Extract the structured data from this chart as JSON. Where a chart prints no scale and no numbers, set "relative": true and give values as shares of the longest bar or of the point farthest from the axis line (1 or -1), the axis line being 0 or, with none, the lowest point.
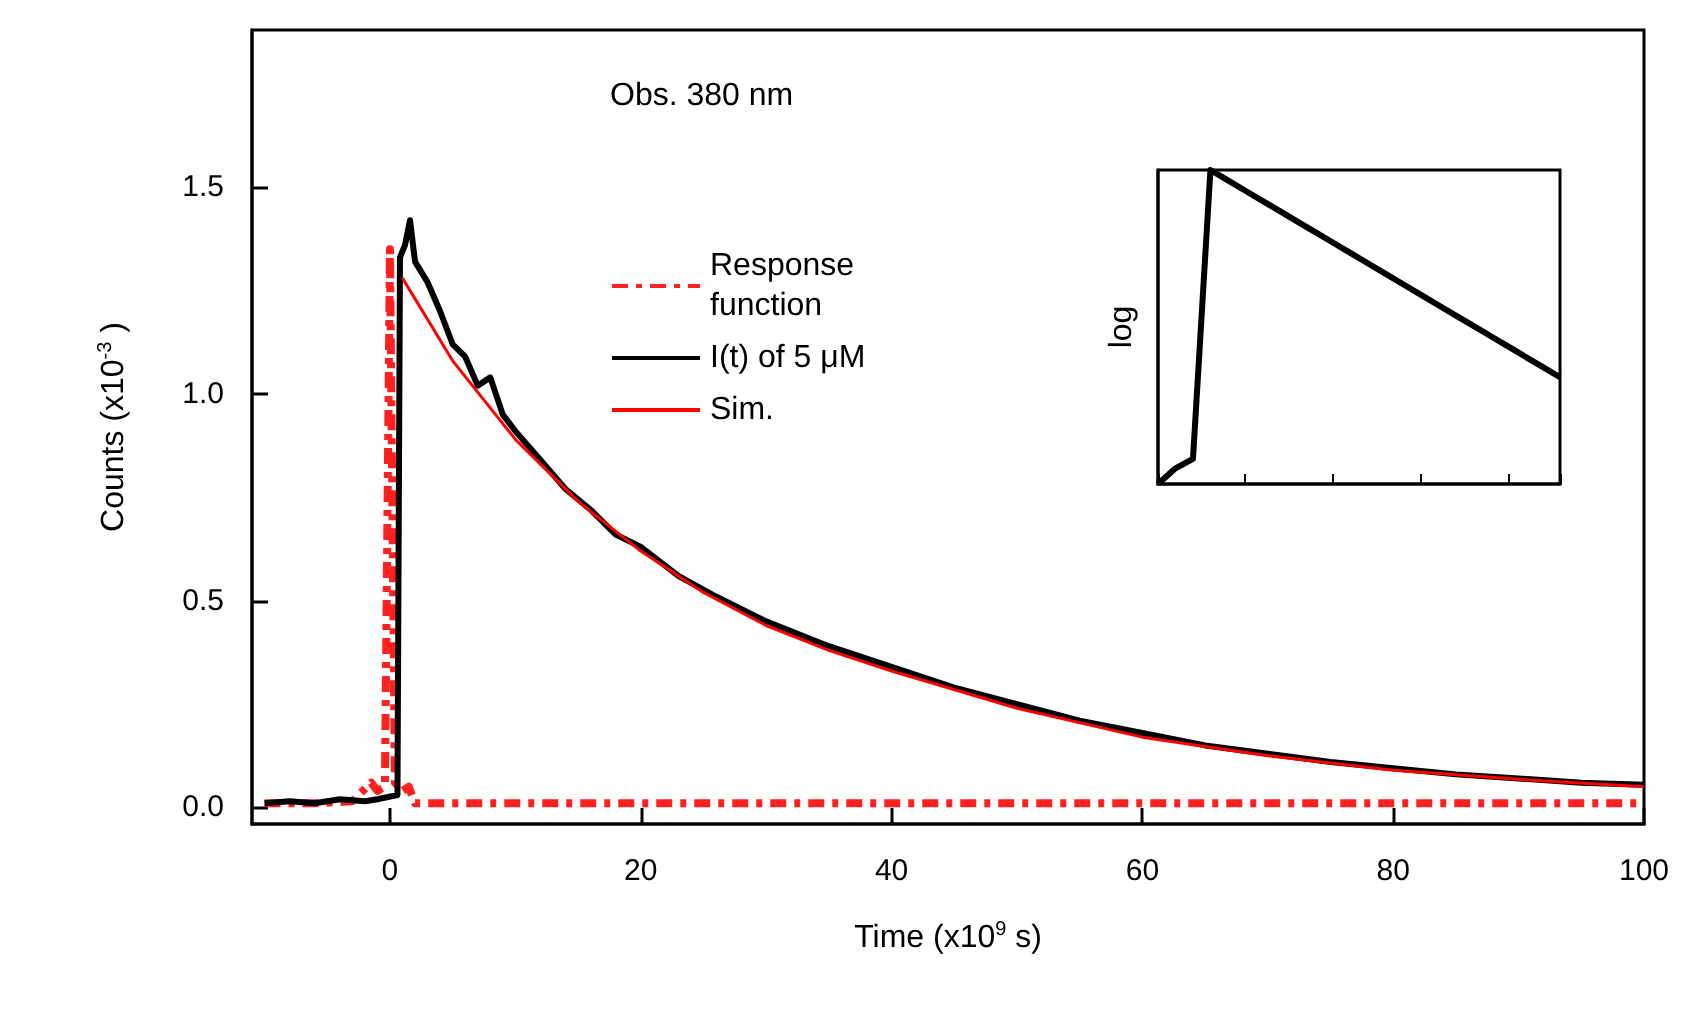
{
  "chart_data": [
    {
      "type": "line",
      "xlabel": "Time (x10$^{9}$ s)",
      "ylabel": "Counts (x10$^{-3}$ )",
      "annotations": [
        "Obs. 380 nm"
      ],
      "xlim": [
        -11,
        100
      ],
      "xticks": [
        0,
        20,
        40,
        60,
        80,
        100
      ],
      "ylim": [
        -0.04,
        1.88
      ],
      "yticks": [
        {
          "value": 0,
          "label": "0.0"
        },
        {
          "value": 0.5,
          "label": "0.5"
        },
        {
          "value": 1,
          "label": "1.0"
        },
        {
          "value": 1.5,
          "label": "1.5"
        }
      ],
      "grid": false,
      "legend": "top",
      "marker": "none",
      "series": [
        {
          "name": "Response function",
          "color": "#ff2020",
          "line_style": "dashed",
          "x": [
            -10,
            -6,
            -3,
            -1.5,
            -1,
            -0.4,
            0,
            0.4,
            1,
            1.5,
            2,
            100
          ],
          "values": [
            0.01,
            0.01,
            0.015,
            0.06,
            0.04,
            0.05,
            1.35,
            0.06,
            0.04,
            0.05,
            0.01,
            0.01
          ]
        },
        {
          "name": "I(t) of 5 μM",
          "color": "#000000",
          "line_style": "solid",
          "x": [
            -10,
            -8,
            -6,
            -4,
            -2,
            -1,
            0.6,
            0.8,
            1.2,
            1.6,
            2,
            3,
            4,
            5,
            6,
            7,
            8,
            9,
            10,
            12,
            14,
            16,
            18,
            20,
            23,
            26,
            30,
            35,
            40,
            45,
            50,
            55,
            60,
            65,
            70,
            75,
            80,
            85,
            90,
            95,
            100
          ],
          "values": [
            0.01,
            0.015,
            0.01,
            0.02,
            0.015,
            0.02,
            0.03,
            1.33,
            1.36,
            1.42,
            1.32,
            1.27,
            1.2,
            1.12,
            1.09,
            1.02,
            1.04,
            0.95,
            0.91,
            0.84,
            0.77,
            0.72,
            0.66,
            0.63,
            0.56,
            0.51,
            0.45,
            0.39,
            0.34,
            0.29,
            0.25,
            0.21,
            0.18,
            0.15,
            0.13,
            0.11,
            0.095,
            0.08,
            0.07,
            0.06,
            0.055
          ]
        },
        {
          "name": "Sim.",
          "color": "#ff0000",
          "line_style": "solid",
          "x": [
            1,
            5,
            10,
            15,
            20,
            25,
            30,
            35,
            40,
            50,
            60,
            70,
            80,
            90,
            100
          ],
          "values": [
            1.28,
            1.08,
            0.89,
            0.74,
            0.62,
            0.52,
            0.44,
            0.38,
            0.33,
            0.24,
            0.17,
            0.125,
            0.09,
            0.068,
            0.05
          ]
        }
      ]
    },
    {
      "type": "line",
      "ylabel": "log",
      "relative": true,
      "grid": false,
      "marker": "none",
      "categories": [
        null,
        null,
        null,
        null,
        null,
        null,
        null,
        null,
        null,
        null,
        null,
        null,
        null,
        null,
        null,
        null,
        null,
        null,
        null,
        null,
        null,
        null,
        null,
        null
      ],
      "series": [
        {
          "color": "#000000",
          "values": [
            0,
            0.05,
            0.08,
            1,
            0.967,
            0.934,
            0.901,
            0.868,
            0.835,
            0.802,
            0.769,
            0.736,
            0.703,
            0.67,
            0.637,
            0.604,
            0.571,
            0.538,
            0.505,
            0.472,
            0.439,
            0.406,
            0.373,
            0.34
          ]
        }
      ]
    }
  ]
}
